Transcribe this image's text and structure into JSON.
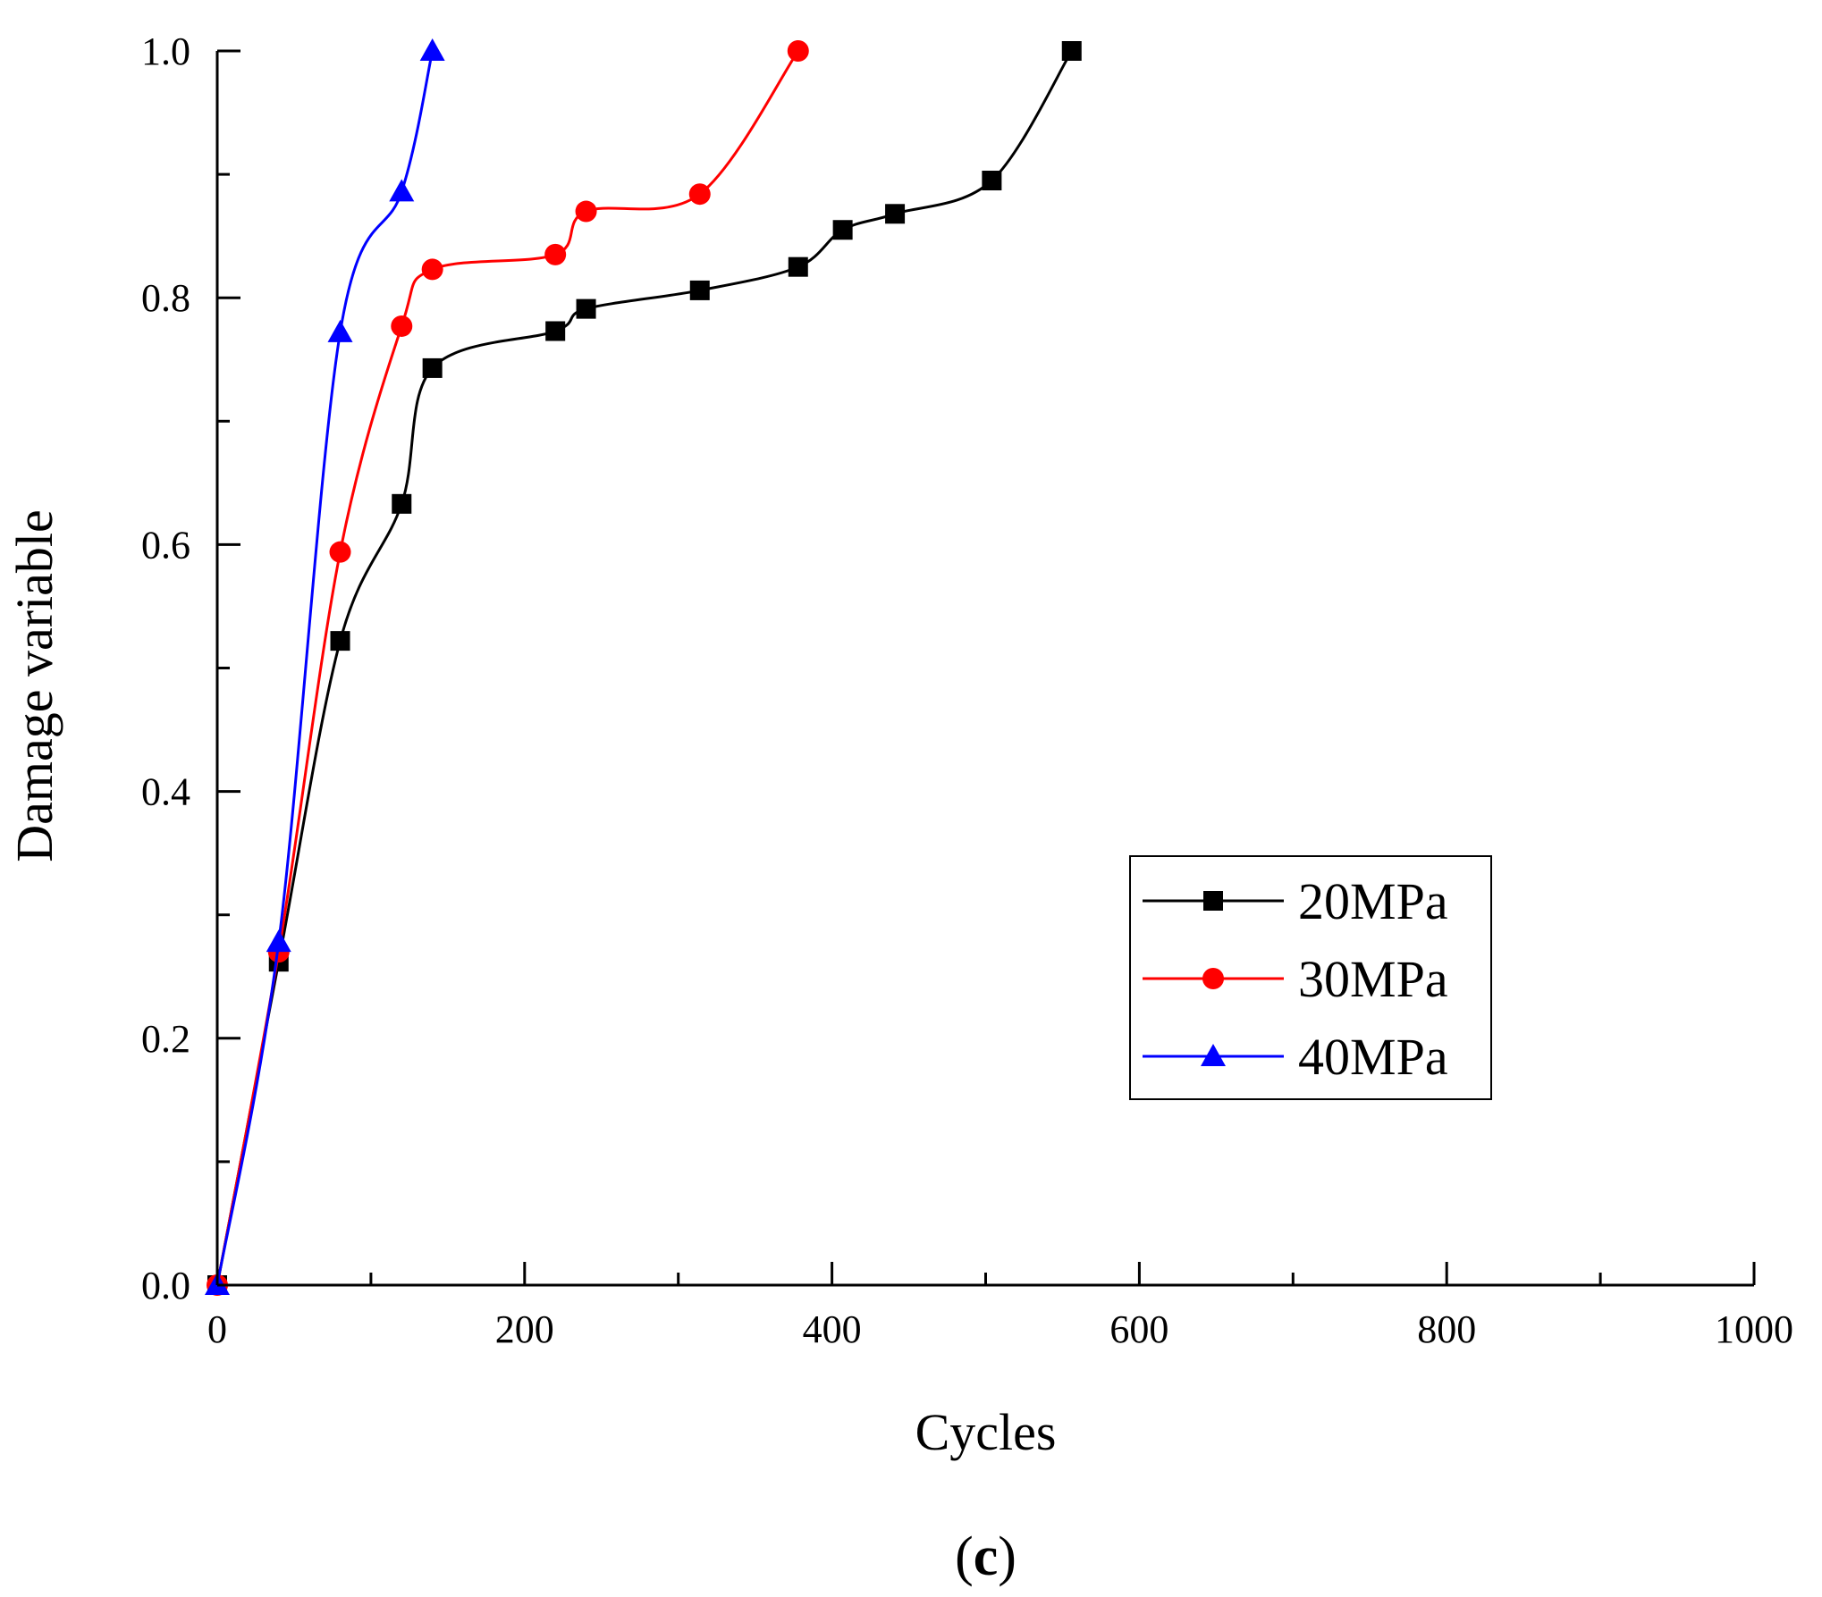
{
  "chart_data": {
    "type": "line",
    "title": "",
    "xlabel": "Cycles",
    "ylabel": "Damage variable",
    "xlim": [
      0,
      1000
    ],
    "ylim": [
      0,
      1.0
    ],
    "x_ticks": [
      0,
      200,
      400,
      600,
      800,
      1000
    ],
    "x_tick_labels": [
      "0",
      "200",
      "400",
      "600",
      "800",
      "1000"
    ],
    "y_ticks": [
      0,
      0.2,
      0.4,
      0.6,
      0.8,
      1.0
    ],
    "y_tick_labels": [
      "0.0",
      "0.2",
      "0.4",
      "0.6",
      "0.8",
      "1.0"
    ],
    "grid": false,
    "legend_position": "right",
    "panel_label": {
      "open": "(",
      "letter": "c",
      "close": ")"
    },
    "series": [
      {
        "name": "20MPa",
        "color": "#000000",
        "marker": "square",
        "x": [
          0,
          40,
          80,
          120,
          140,
          220,
          240,
          314,
          378,
          407,
          441,
          504,
          556
        ],
        "y": [
          0,
          0.262,
          0.522,
          0.633,
          0.743,
          0.773,
          0.791,
          0.806,
          0.825,
          0.855,
          0.868,
          0.895,
          1.0
        ]
      },
      {
        "name": "30MPa",
        "color": "#ff0000",
        "marker": "circle",
        "x": [
          0,
          40,
          80,
          120,
          140,
          220,
          240,
          314,
          378
        ],
        "y": [
          0,
          0.27,
          0.594,
          0.777,
          0.823,
          0.835,
          0.87,
          0.884,
          1.0
        ]
      },
      {
        "name": "40MPa",
        "color": "#0000ff",
        "marker": "triangle",
        "x": [
          0,
          40,
          80,
          120,
          140
        ],
        "y": [
          0,
          0.278,
          0.772,
          0.886,
          1.0
        ]
      }
    ]
  }
}
